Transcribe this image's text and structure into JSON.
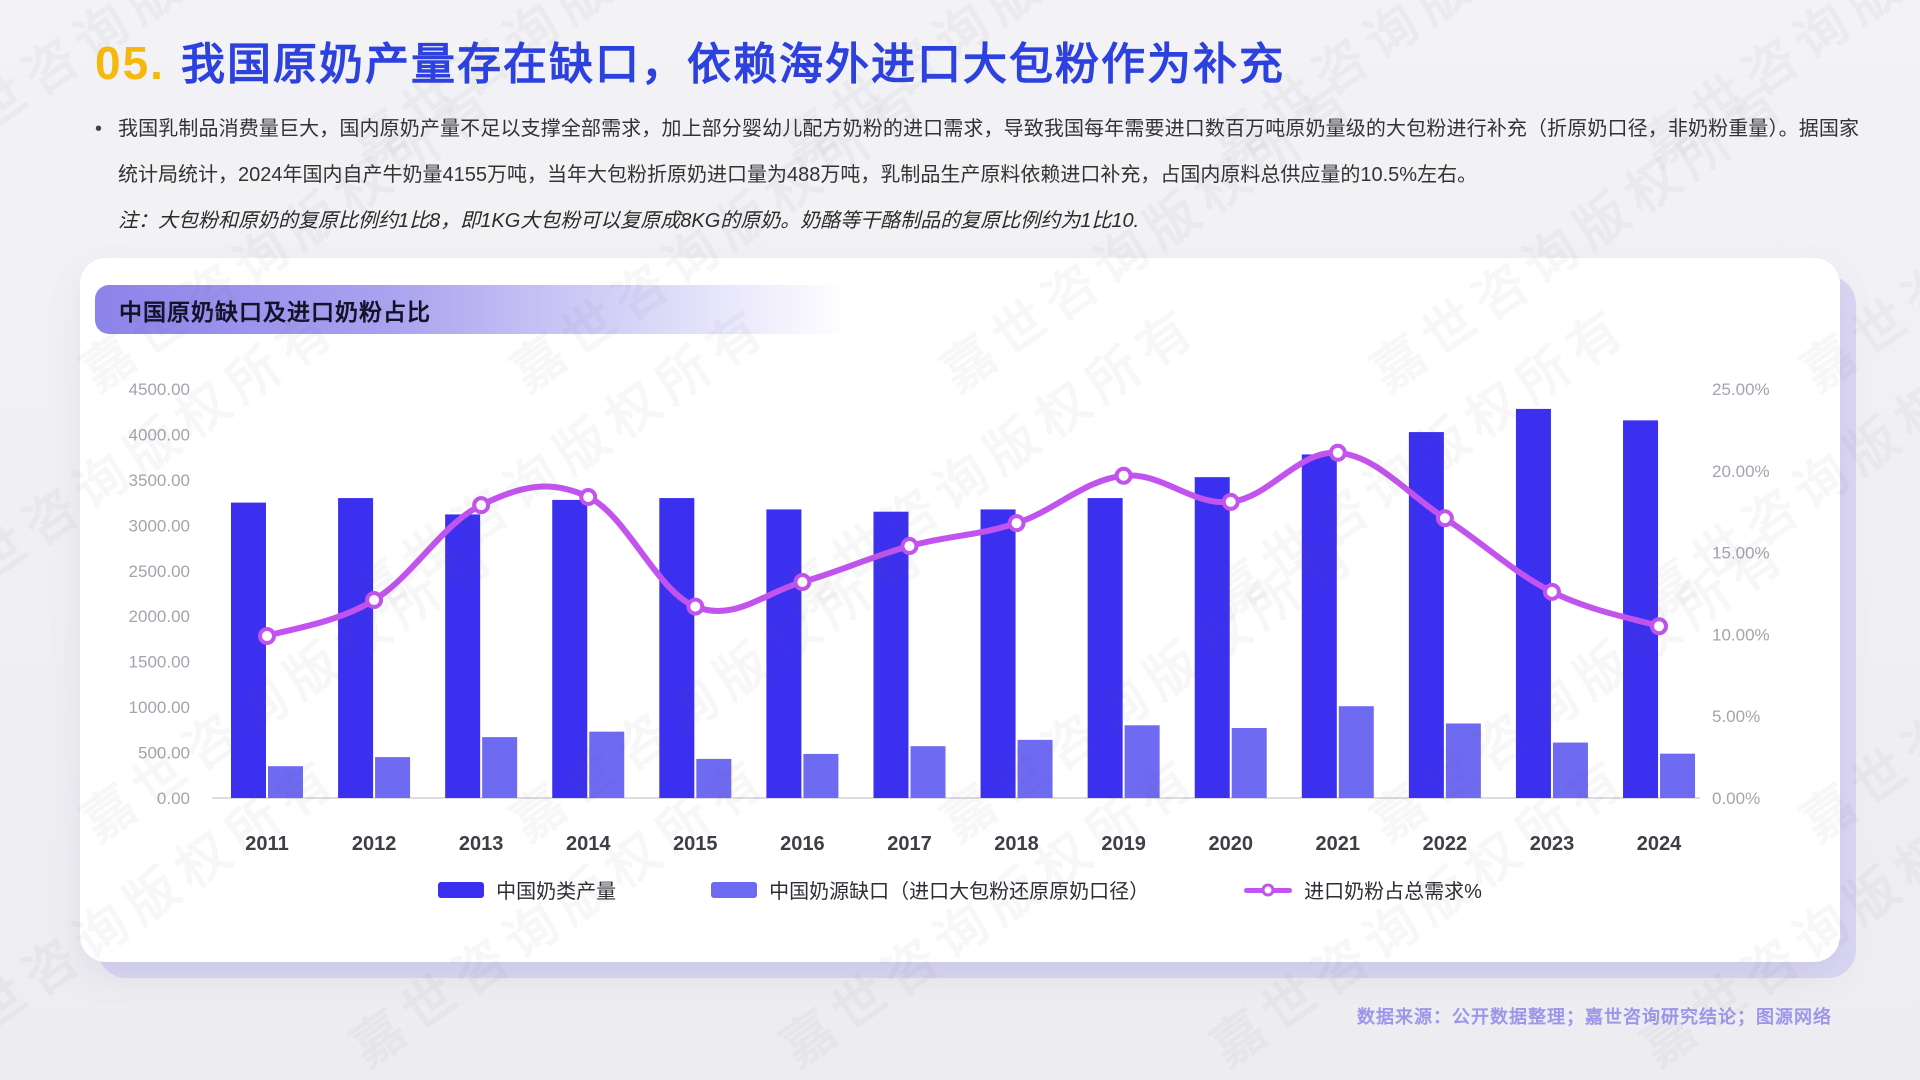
{
  "header": {
    "number": "05.",
    "title": "我国原奶产量存在缺口，依赖海外进口大包粉作为补充"
  },
  "intro": {
    "bullet": "•",
    "paragraph": "我国乳制品消费量巨大，国内原奶产量不足以支撑全部需求，加上部分婴幼儿配方奶粉的进口需求，导致我国每年需要进口数百万吨原奶量级的大包粉进行补充（折原奶口径，非奶粉重量）。据国家统计局统计，2024年国内自产牛奶量4155万吨，当年大包粉折原奶进口量为488万吨，乳制品生产原料依赖进口补充，占国内原料总供应量的10.5%左右。",
    "note": "注：大包粉和原奶的复原比例约1比8，即1KG大包粉可以复原成8KG的原奶。奶酪等干酪制品的复原比例约为1比10."
  },
  "card": {
    "title": "中国原奶缺口及进口奶粉占比"
  },
  "chart_data": {
    "type": "bar+line",
    "title": "中国原奶缺口及进口奶粉占比",
    "categories": [
      "2011",
      "2012",
      "2013",
      "2014",
      "2015",
      "2016",
      "2017",
      "2018",
      "2019",
      "2020",
      "2021",
      "2022",
      "2023",
      "2024"
    ],
    "series": [
      {
        "name": "中国奶类产量",
        "role": "production",
        "type": "bar",
        "axis": "left",
        "color": "#3b2ff0",
        "values": [
          3250,
          3300,
          3120,
          3280,
          3300,
          3175,
          3150,
          3175,
          3300,
          3530,
          3780,
          4026,
          4281,
          4155
        ]
      },
      {
        "name": "中国奶源缺口（进口大包粉还原原奶口径）",
        "role": "gap",
        "type": "bar",
        "axis": "left",
        "color": "#6f6af2",
        "values": [
          350,
          450,
          670,
          730,
          430,
          485,
          570,
          640,
          800,
          770,
          1010,
          820,
          610,
          488
        ]
      },
      {
        "name": "进口奶粉占总需求%",
        "role": "import-share",
        "type": "line",
        "axis": "right",
        "color": "#c353ee",
        "values": [
          9.9,
          12.1,
          17.9,
          18.4,
          11.7,
          13.2,
          15.4,
          16.8,
          19.7,
          18.1,
          21.1,
          17.1,
          12.6,
          10.5
        ]
      }
    ],
    "left_axis": {
      "min": 0,
      "max": 4500,
      "step": 500,
      "format": "0.00"
    },
    "right_axis": {
      "min": 0,
      "max": 25,
      "step": 5,
      "format": "0.00%"
    },
    "grid": false,
    "legend_position": "bottom"
  },
  "footer": {
    "source": "数据来源：公开数据整理；嘉世咨询研究结论；图源网络"
  },
  "watermark": {
    "text": "嘉世咨询版权所有"
  },
  "colors": {
    "accent_gold": "#f5b80c",
    "title_blue": "#2c41de",
    "bar_dark": "#3b2ff0",
    "bar_light": "#6f6af2",
    "line_purple": "#c353ee",
    "footer_purple": "#9e96e9",
    "card_shadow": "#dad7f3"
  }
}
